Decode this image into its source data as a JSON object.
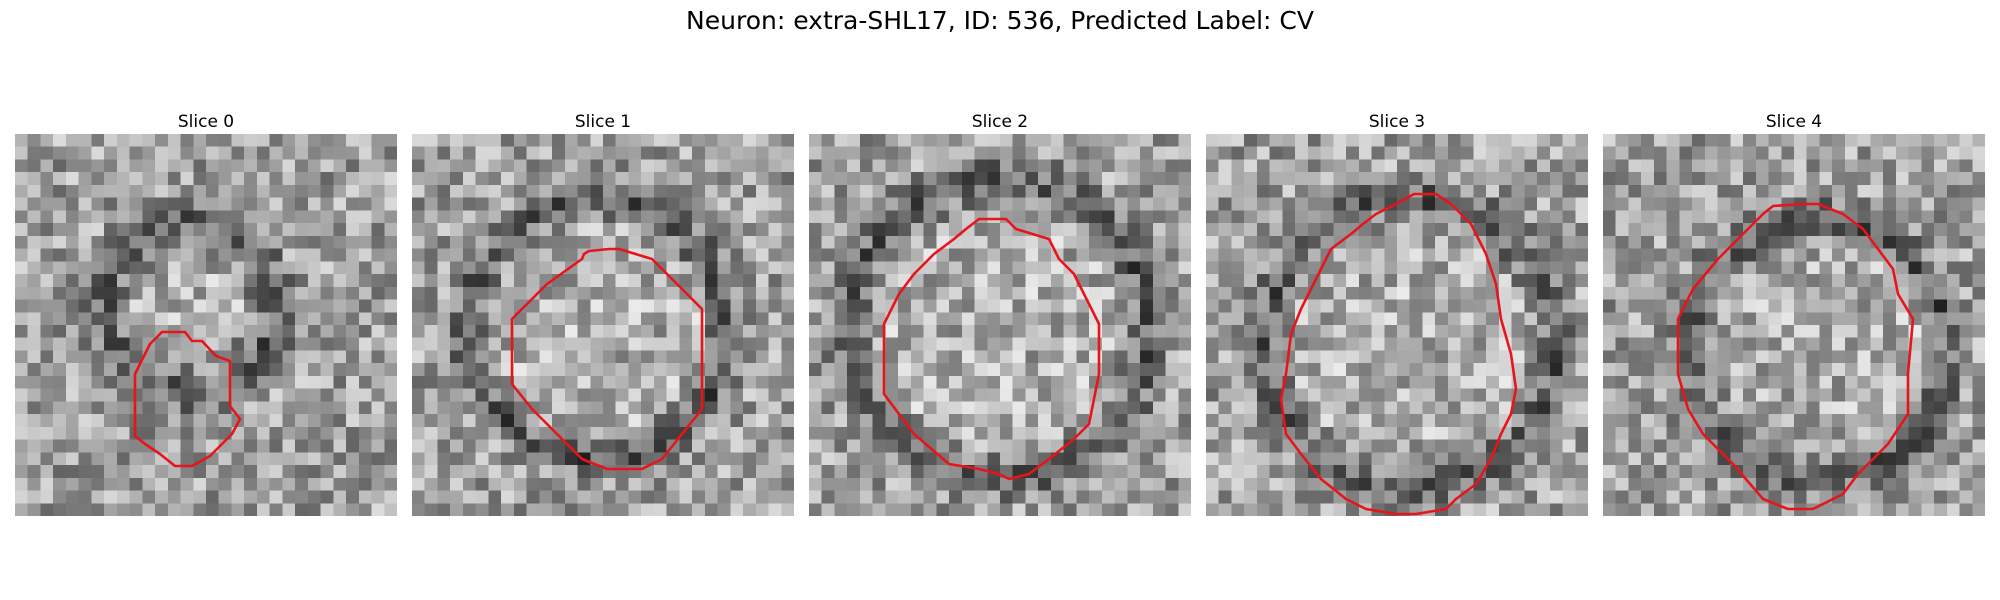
{
  "figure": {
    "title": "Neuron: extra-SHL17, ID: 536, Predicted Label: CV"
  },
  "colors": {
    "contour": "#e8141c"
  },
  "panels": [
    {
      "title": "Slice 0"
    },
    {
      "title": "Slice 1"
    },
    {
      "title": "Slice 2"
    },
    {
      "title": "Slice 3"
    },
    {
      "title": "Slice 4"
    }
  ]
}
